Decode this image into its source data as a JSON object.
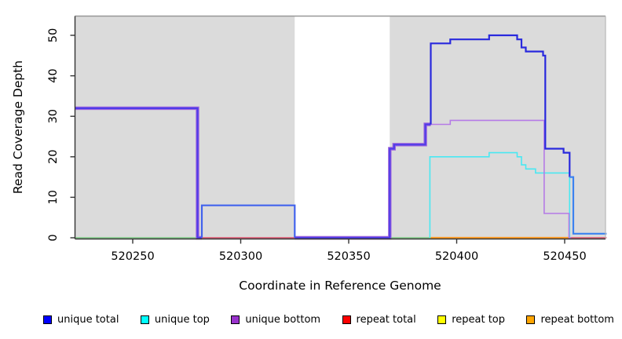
{
  "chart_data": {
    "type": "line",
    "step_style": "after",
    "title": "",
    "xlabel": "Coordinate in Reference Genome",
    "ylabel": "Read Coverage Depth",
    "xlim": [
      520223,
      520469
    ],
    "ylim": [
      0,
      55
    ],
    "grid": false,
    "x_ticks": [
      520250,
      520300,
      520350,
      520400,
      520450
    ],
    "y_ticks": [
      0,
      10,
      20,
      30,
      40,
      50
    ],
    "background": {
      "plot_bg": "#ffffff",
      "shaded_color": "#dbdbdb",
      "shaded_bands_x": [
        [
          520223,
          520325
        ],
        [
          520369,
          520469
        ]
      ],
      "white_gap_x": [
        520325,
        520369
      ]
    },
    "legend_position": "bottom",
    "legend": [
      {
        "label": "unique total",
        "color": "#0000ff"
      },
      {
        "label": "unique top",
        "color": "#00ffff"
      },
      {
        "label": "unique bottom",
        "color": "#9932cc"
      },
      {
        "label": "repeat total",
        "color": "#ff0000"
      },
      {
        "label": "repeat top",
        "color": "#ffff00"
      },
      {
        "label": "repeat bottom",
        "color": "#ffa500"
      }
    ],
    "series": [
      {
        "name": "repeat-total-left",
        "legend": "repeat total",
        "color": "#e0607a",
        "width": 1.8,
        "verts": [
          [
            520281,
            0
          ],
          [
            520325,
            0
          ]
        ]
      },
      {
        "name": "repeat-total-right",
        "legend": "repeat total",
        "color": "#e0607a",
        "width": 1.8,
        "verts": [
          [
            520450,
            0
          ],
          [
            520469.4,
            0
          ]
        ]
      },
      {
        "name": "zero-overlap-left",
        "legend": "unique top + repeat top overlap",
        "color": "#88cf8e",
        "width": 1.8,
        "verts": [
          [
            520223.3,
            0
          ],
          [
            520281,
            0
          ]
        ]
      },
      {
        "name": "zero-overlap-mid",
        "legend": "unique top + repeat top overlap",
        "color": "#88cf8e",
        "width": 1.8,
        "verts": [
          [
            520369,
            0
          ],
          [
            520388,
            0
          ]
        ]
      },
      {
        "name": "repeat-bottom",
        "legend": "repeat bottom",
        "color": "#ff9d26",
        "width": 2.2,
        "verts": [
          [
            520388,
            0
          ],
          [
            520452,
            0
          ]
        ]
      },
      {
        "name": "unique-top",
        "legend": "unique top",
        "color": "#49e8f2",
        "width": 1.6,
        "verts": [
          [
            520387.6,
            0
          ],
          [
            520387.6,
            20
          ],
          [
            520415,
            20
          ],
          [
            520415,
            21
          ],
          [
            520428,
            21
          ],
          [
            520428,
            20
          ],
          [
            520430,
            20
          ],
          [
            520430,
            18
          ],
          [
            520432,
            18
          ],
          [
            520432,
            17
          ],
          [
            520436.5,
            17
          ],
          [
            520436.5,
            16
          ],
          [
            520452.3,
            16
          ],
          [
            520452.3,
            0
          ]
        ]
      },
      {
        "name": "unique-bottom",
        "legend": "unique bottom",
        "color": "#b57be6",
        "width": 1.6,
        "verts": [
          [
            520388,
            28
          ],
          [
            520397,
            28
          ],
          [
            520397,
            29
          ],
          [
            520440.5,
            29
          ],
          [
            520440.5,
            6
          ],
          [
            520452,
            6
          ],
          [
            520452,
            0
          ],
          [
            520453,
            0
          ]
        ]
      },
      {
        "name": "unique-bottom-under-total-halo-a",
        "legend": "unique bottom (overlapped by unique total)",
        "color": "#a066dd",
        "width": 4.4,
        "verts": [
          [
            520223.3,
            32
          ],
          [
            520280,
            32
          ],
          [
            520280,
            0
          ],
          [
            520282,
            0
          ]
        ]
      },
      {
        "name": "unique-bottom-under-total-halo-b",
        "legend": "unique bottom (overlapped by unique total)",
        "color": "#a066dd",
        "width": 4.4,
        "verts": [
          [
            520325,
            0
          ],
          [
            520369,
            0
          ],
          [
            520369,
            22
          ],
          [
            520371,
            22
          ],
          [
            520371,
            23
          ],
          [
            520385.5,
            23
          ],
          [
            520385.5,
            28
          ],
          [
            520388,
            28
          ]
        ]
      },
      {
        "name": "unique-total-a",
        "legend": "unique total",
        "color": "#4f3ce8",
        "width": 2.2,
        "verts": [
          [
            520223.3,
            32
          ],
          [
            520280,
            32
          ],
          [
            520280,
            0
          ],
          [
            520282,
            0
          ]
        ]
      },
      {
        "name": "unique-total-b",
        "legend": "unique total",
        "color": "#4263ed",
        "width": 2.2,
        "verts": [
          [
            520282,
            0
          ],
          [
            520282,
            8
          ],
          [
            520325,
            8
          ],
          [
            520325,
            0
          ]
        ]
      },
      {
        "name": "unique-total-c",
        "legend": "unique total",
        "color": "#4f3ce8",
        "width": 2.2,
        "verts": [
          [
            520325,
            0
          ],
          [
            520369,
            0
          ],
          [
            520369,
            22
          ],
          [
            520371,
            22
          ],
          [
            520371,
            23
          ],
          [
            520385.5,
            23
          ],
          [
            520385.5,
            28
          ],
          [
            520388,
            28
          ]
        ]
      },
      {
        "name": "unique-total-d",
        "legend": "unique total",
        "color": "#2929dd",
        "width": 2.2,
        "verts": [
          [
            520388,
            28
          ],
          [
            520388,
            48
          ],
          [
            520397,
            48
          ],
          [
            520397,
            49
          ],
          [
            520415,
            49
          ],
          [
            520415,
            50
          ],
          [
            520428,
            50
          ],
          [
            520428,
            49
          ],
          [
            520430,
            49
          ],
          [
            520430,
            47
          ],
          [
            520432,
            47
          ],
          [
            520432,
            46
          ],
          [
            520440,
            46
          ],
          [
            520440,
            45
          ],
          [
            520441,
            45
          ],
          [
            520441,
            22
          ],
          [
            520449.5,
            22
          ],
          [
            520449.5,
            21
          ],
          [
            520452.3,
            21
          ],
          [
            520452.3,
            15
          ]
        ]
      },
      {
        "name": "unique-total-e",
        "legend": "unique total",
        "color": "#3b82f0",
        "width": 2.2,
        "verts": [
          [
            520452.3,
            15
          ],
          [
            520454,
            15
          ],
          [
            520454,
            1
          ],
          [
            520469.4,
            1
          ]
        ]
      }
    ]
  },
  "labels": {
    "x_axis_title": "Coordinate in Reference Genome",
    "y_axis_title": "Read Coverage Depth"
  }
}
